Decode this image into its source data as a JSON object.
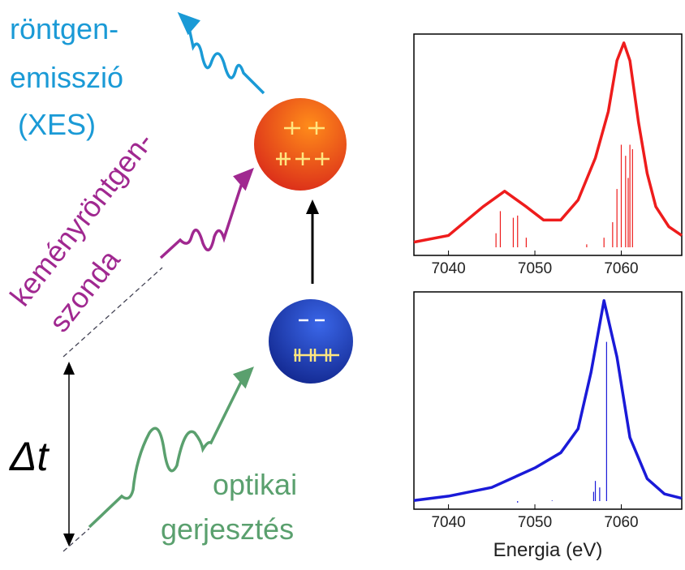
{
  "labels": {
    "xes": [
      "röntgen-",
      "emisszió",
      "(XES)"
    ],
    "probe": [
      "keményröntgen-",
      "szonda"
    ],
    "delay": "Δt",
    "pump": [
      "optikai",
      "gerjesztés"
    ]
  },
  "chart_data": [
    {
      "type": "line",
      "xlim": [
        7036,
        7067
      ],
      "xticks": [
        7040,
        7050,
        7060
      ],
      "ylim": [
        0,
        1
      ],
      "series": [
        {
          "color": "#ee1c1c",
          "x": [
            7036,
            7040,
            7044,
            7046.5,
            7049,
            7051,
            7053,
            7055,
            7057,
            7058.5,
            7059.5,
            7060.3,
            7061,
            7062,
            7063,
            7064,
            7065.5,
            7067
          ],
          "values": [
            0.06,
            0.09,
            0.22,
            0.29,
            0.22,
            0.16,
            0.16,
            0.25,
            0.44,
            0.65,
            0.88,
            0.96,
            0.88,
            0.6,
            0.37,
            0.22,
            0.13,
            0.09
          ]
        }
      ],
      "sticks": {
        "color": "#ee1c1c",
        "x": [
          7045.5,
          7046,
          7047.5,
          7048,
          7049,
          7056,
          7058,
          7059,
          7059.5,
          7060,
          7060.5,
          7060.8,
          7061,
          7061.3
        ],
        "values": [
          0.1,
          0.2,
          0.17,
          0.18,
          0.08,
          0.05,
          0.08,
          0.15,
          0.3,
          0.5,
          0.45,
          0.35,
          0.5,
          0.48
        ]
      }
    },
    {
      "type": "line",
      "xlim": [
        7036,
        7067
      ],
      "xticks": [
        7040,
        7050,
        7060
      ],
      "ylim": [
        0,
        1
      ],
      "xlabel": "Energia (eV)",
      "series": [
        {
          "color": "#1a1ad8",
          "x": [
            7036,
            7040,
            7045,
            7050,
            7053,
            7055,
            7056.5,
            7058,
            7059.5,
            7061,
            7063,
            7065,
            7067
          ],
          "values": [
            0.04,
            0.06,
            0.1,
            0.19,
            0.26,
            0.37,
            0.63,
            0.96,
            0.7,
            0.33,
            0.14,
            0.07,
            0.05
          ]
        }
      ],
      "sticks": {
        "color": "#1a1ad8",
        "x": [
          7048,
          7052,
          7056.8,
          7057,
          7057.5,
          7058.3
        ],
        "values": [
          0.03,
          0.04,
          0.08,
          0.13,
          0.1,
          0.77
        ]
      }
    }
  ]
}
